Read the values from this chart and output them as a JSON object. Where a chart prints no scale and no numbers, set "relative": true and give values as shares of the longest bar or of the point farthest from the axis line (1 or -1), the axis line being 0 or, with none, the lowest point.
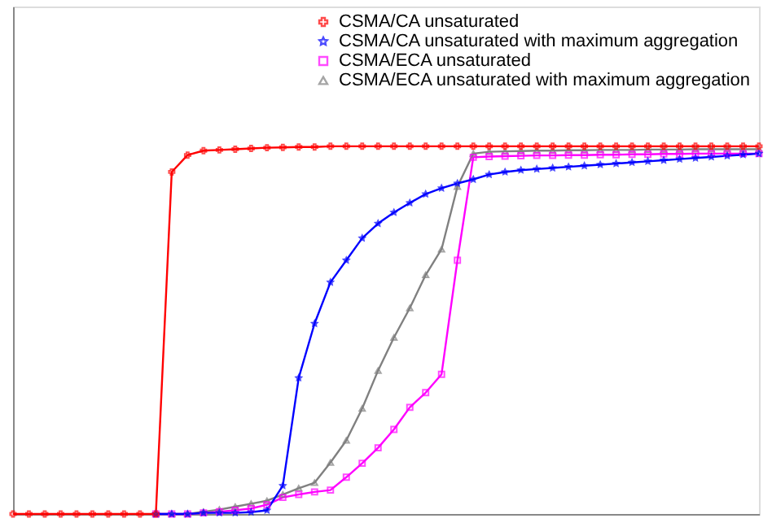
{
  "chart_data": {
    "type": "line",
    "relative": true,
    "grid": false,
    "legend": "top right",
    "line_style": "solid",
    "categories": [
      null,
      null,
      null,
      null,
      null,
      null,
      null,
      null,
      null,
      null,
      null,
      null,
      null,
      null,
      null,
      null,
      null,
      null,
      null,
      null,
      null,
      null,
      null,
      null,
      null,
      null,
      null,
      null,
      null,
      null,
      null,
      null,
      null,
      null,
      null,
      null,
      null,
      null,
      null,
      null,
      null,
      null,
      null,
      null,
      null,
      null,
      null,
      null
    ],
    "series": [
      {
        "name": "CSMA/CA unsaturated",
        "color": "#ff0000",
        "marker": "cross",
        "values": [
          0,
          0,
          0,
          0,
          0,
          0,
          0,
          0,
          0,
          0,
          0.93,
          0.976,
          0.988,
          0.99,
          0.992,
          0.994,
          0.996,
          0.997,
          0.998,
          0.998,
          1,
          1,
          1,
          1,
          1,
          1,
          1,
          1,
          1,
          1,
          1,
          1,
          1,
          1,
          1,
          1,
          1,
          1,
          1,
          1,
          1,
          1,
          1,
          1,
          1,
          1,
          1,
          1
        ]
      },
      {
        "name": "CSMA/CA unsaturated with maximum aggregation",
        "color": "#0000ff",
        "marker": "star",
        "values": [
          null,
          null,
          null,
          null,
          null,
          null,
          null,
          null,
          null,
          0,
          0,
          0,
          0.003,
          0.003,
          0.003,
          0.005,
          0.01,
          0.077,
          0.37,
          0.518,
          0.63,
          0.69,
          0.75,
          0.79,
          0.82,
          0.846,
          0.87,
          0.886,
          0.899,
          0.91,
          0.923,
          0.93,
          0.935,
          0.938,
          0.941,
          0.944,
          0.947,
          0.95,
          0.953,
          0.956,
          0.959,
          0.962,
          0.965,
          0.968,
          0.971,
          0.974,
          0.977,
          0.98
        ]
      },
      {
        "name": "CSMA/ECA unsaturated",
        "color": "#ff00ff",
        "marker": "square",
        "values": [
          null,
          null,
          null,
          null,
          null,
          null,
          null,
          null,
          null,
          0,
          0,
          0,
          0.003,
          0.006,
          0.01,
          0.015,
          0.025,
          0.045,
          0.053,
          0.06,
          0.065,
          0.1,
          0.138,
          0.18,
          0.23,
          0.29,
          0.33,
          0.38,
          0.69,
          0.97,
          0.972,
          0.973,
          0.974,
          0.975,
          0.975,
          0.976,
          0.976,
          0.977,
          0.977,
          0.978,
          0.978,
          0.979,
          0.979,
          0.98,
          0.98,
          0.98,
          0.98,
          0.98
        ]
      },
      {
        "name": "CSMA/ECA unsaturated with maximum aggregation",
        "color": "#808080",
        "marker": "triangle",
        "values": [
          null,
          null,
          null,
          null,
          null,
          null,
          null,
          null,
          null,
          0,
          0,
          0,
          0.006,
          0.012,
          0.02,
          0.028,
          0.036,
          0.053,
          0.07,
          0.085,
          0.14,
          0.2,
          0.287,
          0.39,
          0.48,
          0.56,
          0.65,
          0.72,
          0.89,
          0.98,
          0.985,
          0.986,
          0.987,
          0.988,
          0.988,
          0.989,
          0.989,
          0.99,
          0.99,
          0.99,
          0.991,
          0.991,
          0.991,
          0.992,
          0.992,
          0.992,
          0.992,
          0.992
        ]
      }
    ]
  }
}
